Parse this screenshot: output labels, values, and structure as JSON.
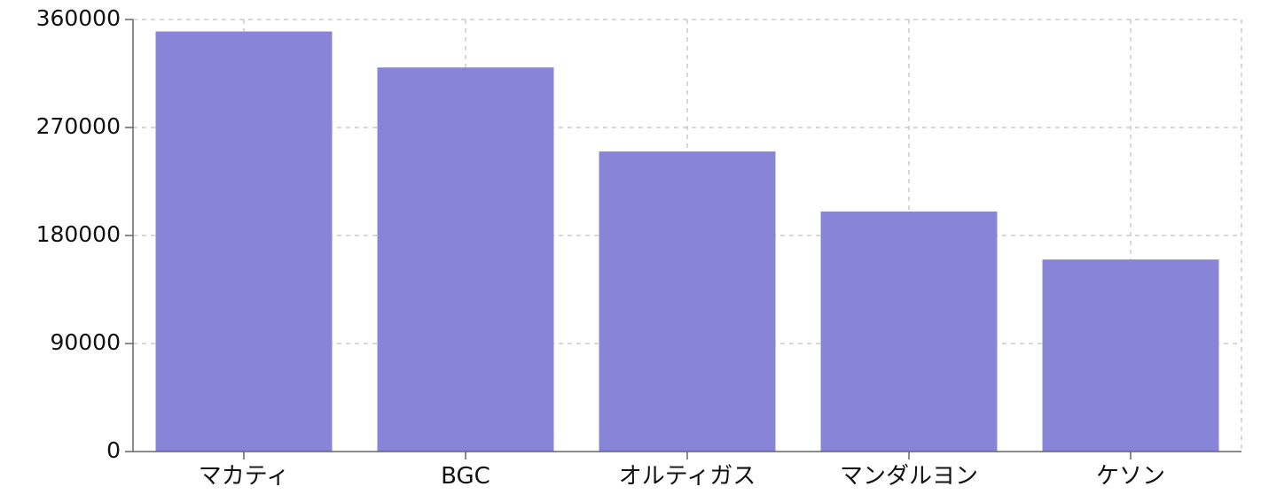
{
  "chart_data": {
    "type": "bar",
    "title": "",
    "xlabel": "",
    "ylabel": "",
    "categories": [
      "マカティ",
      "BGC",
      "オルティガス",
      "マンダルヨン",
      "ケソン"
    ],
    "values": [
      350000,
      320000,
      250000,
      200000,
      160000
    ],
    "ylim": [
      0,
      360000
    ],
    "yticks": [
      "0",
      "90000",
      "180000",
      "270000",
      "360000"
    ],
    "grid": true,
    "legend": "none",
    "colors": {
      "bar": "#8884d8",
      "grid": "#cccccc",
      "axis": "#666666",
      "text": "#111111"
    }
  }
}
